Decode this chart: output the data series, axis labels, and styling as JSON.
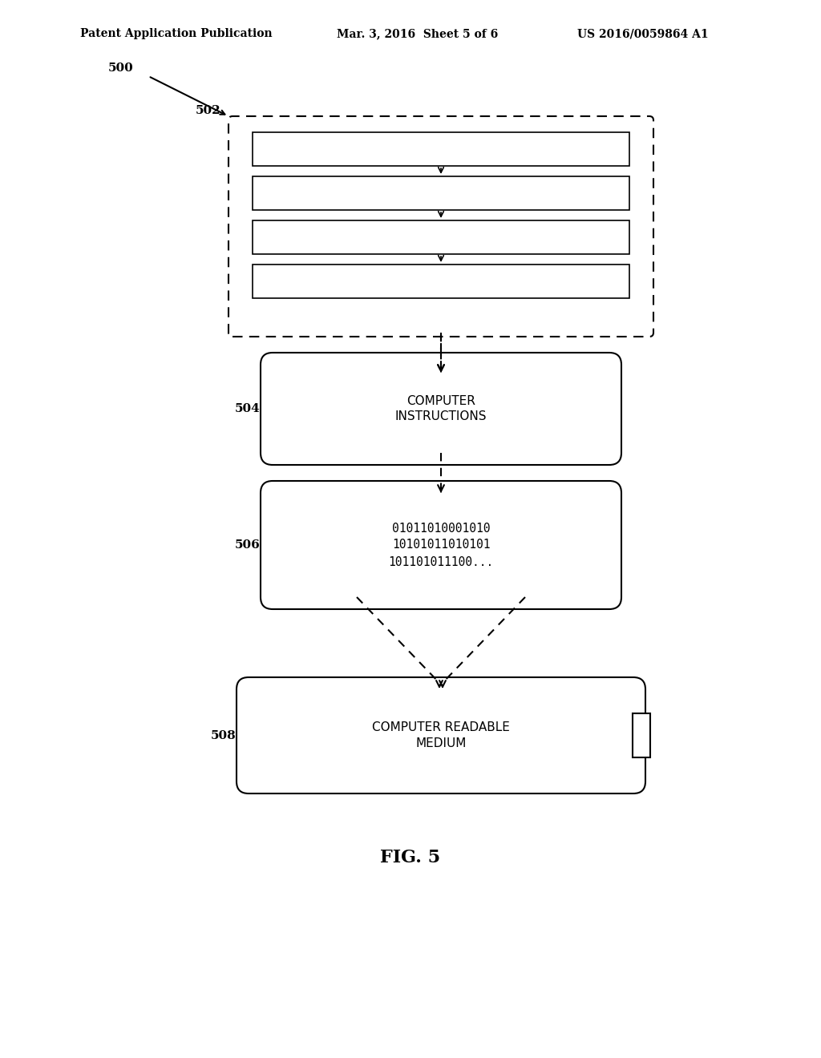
{
  "background_color": "#ffffff",
  "header_text": "Patent Application Publication",
  "header_date": "Mar. 3, 2016  Sheet 5 of 6",
  "header_patent": "US 2016/0059864 A1",
  "fig_label": "FIG. 5",
  "label_500": "500",
  "label_502": "502",
  "label_504": "504",
  "label_506": "506",
  "label_508": "508",
  "computer_instructions_text": "COMPUTER\nINSTRUCTIONS",
  "binary_text": "01011010001010\n10101011010101\n101101011100...",
  "computer_readable_text": "COMPUTER READABLE\nMEDIUM"
}
